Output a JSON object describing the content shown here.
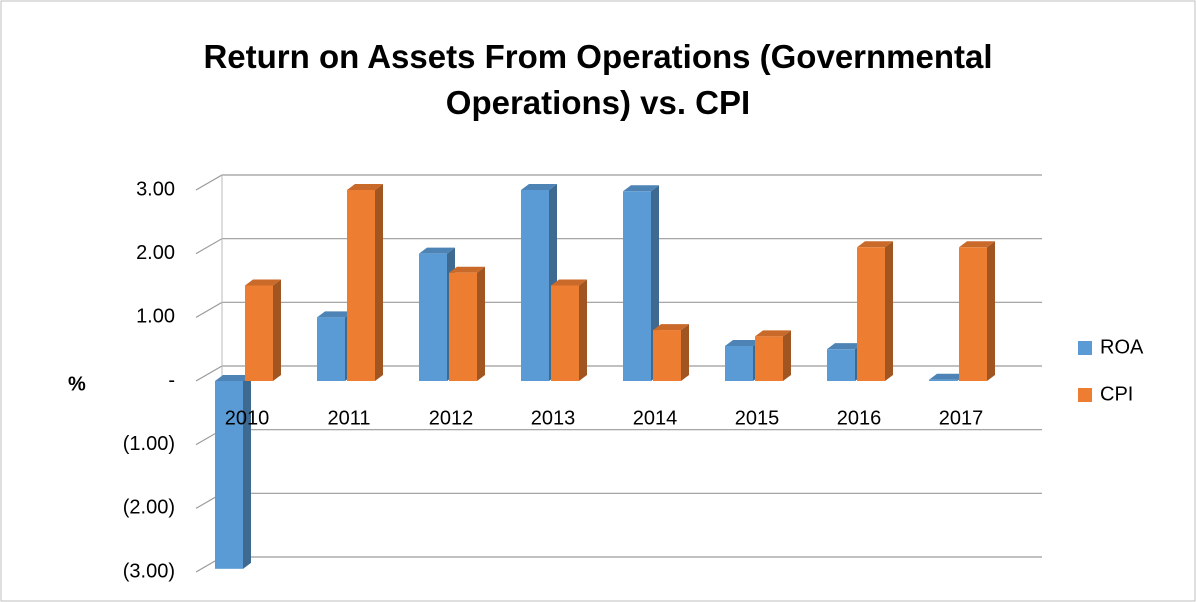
{
  "chart_data": {
    "type": "bar3d",
    "title": "Return on Assets From Operations (Governmental Operations) vs. CPI",
    "y_label": "%",
    "categories": [
      "2010",
      "2011",
      "2012",
      "2013",
      "2014",
      "2015",
      "2016",
      "2017"
    ],
    "series": [
      {
        "name": "ROA",
        "color": "#5b9bd5",
        "values": [
          -2.95,
          1.0,
          2.0,
          3.0,
          2.98,
          0.55,
          0.5,
          0.02
        ]
      },
      {
        "name": "CPI",
        "color": "#ed7d31",
        "values": [
          1.5,
          3.0,
          1.7,
          1.5,
          0.8,
          0.7,
          2.1,
          2.1
        ]
      }
    ],
    "ylim": [
      -3,
      3
    ],
    "yticks": [
      {
        "value": -3,
        "label": "(3.00)"
      },
      {
        "value": -2,
        "label": "(2.00)"
      },
      {
        "value": -1,
        "label": "(1.00)"
      },
      {
        "value": 0,
        "label": "-"
      },
      {
        "value": 1,
        "label": "1.00"
      },
      {
        "value": 2,
        "label": "2.00"
      },
      {
        "value": 3,
        "label": "3.00"
      }
    ],
    "grid": true,
    "legend": "right"
  }
}
